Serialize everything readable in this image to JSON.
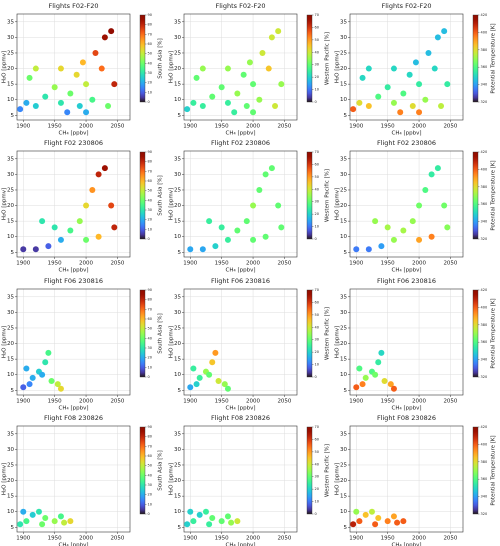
{
  "chart_data": [
    {
      "type": "scatter",
      "title": "Flights F02-F20",
      "x_label": "CH₄ [ppbv]",
      "y_label": "H₂O [ppmv]",
      "colorbar_label": "South Asia [%]",
      "xlim": [
        1890,
        2070
      ],
      "ylim": [
        3.5,
        37.5
      ],
      "xticks": [
        1900,
        1950,
        2000,
        2050
      ],
      "yticks": [
        5,
        10,
        15,
        20,
        25,
        30,
        35
      ],
      "clim": [
        0,
        90
      ],
      "cticks": [
        0,
        10,
        20,
        30,
        40,
        50,
        60,
        70,
        80,
        90
      ],
      "grid": true,
      "x": [
        1895,
        1905,
        1920,
        1935,
        1950,
        1960,
        1975,
        1985,
        1995,
        2000,
        2010,
        2015,
        2025,
        2030,
        2040,
        2045,
        2035,
        1920,
        1910,
        1960,
        1990,
        2000,
        1970
      ],
      "y": [
        7,
        9,
        8,
        11,
        14,
        9,
        12,
        18,
        22,
        15,
        10,
        25,
        20,
        30,
        32,
        15,
        8,
        20,
        17,
        20,
        8,
        6,
        6
      ],
      "c": [
        15,
        20,
        25,
        30,
        45,
        30,
        40,
        55,
        60,
        50,
        35,
        75,
        70,
        85,
        88,
        80,
        40,
        50,
        40,
        55,
        25,
        20,
        15
      ]
    },
    {
      "type": "scatter",
      "title": "Flights F02-F20",
      "x_label": "CH₄ [ppbv]",
      "y_label": "H₂O [ppmv]",
      "colorbar_label": "Western Pacific [%]",
      "xlim": [
        1890,
        2070
      ],
      "ylim": [
        3.5,
        37.5
      ],
      "xticks": [
        1900,
        1950,
        2000,
        2050
      ],
      "yticks": [
        5,
        10,
        15,
        20,
        25,
        30,
        35
      ],
      "clim": [
        0,
        70
      ],
      "cticks": [
        0,
        10,
        20,
        30,
        40,
        50,
        60,
        70
      ],
      "grid": true,
      "x": [
        1895,
        1905,
        1920,
        1935,
        1950,
        1960,
        1975,
        1985,
        1995,
        2000,
        2010,
        2015,
        2025,
        2030,
        2040,
        2045,
        2035,
        1920,
        1910,
        1960,
        1990,
        2000,
        1970
      ],
      "y": [
        7,
        9,
        8,
        11,
        14,
        9,
        12,
        18,
        22,
        15,
        10,
        25,
        20,
        30,
        32,
        15,
        8,
        20,
        17,
        20,
        8,
        6,
        6
      ],
      "c": [
        20,
        25,
        25,
        30,
        30,
        25,
        35,
        30,
        35,
        30,
        35,
        40,
        45,
        40,
        40,
        35,
        40,
        35,
        30,
        35,
        30,
        30,
        25
      ]
    },
    {
      "type": "scatter",
      "title": "Flights F02-F20",
      "x_label": "CH₄ [ppbv]",
      "y_label": "H₂O [ppmv]",
      "colorbar_label": "Potential Temperature [K]",
      "xlim": [
        1890,
        2070
      ],
      "ylim": [
        3.5,
        37.5
      ],
      "xticks": [
        1900,
        1950,
        2000,
        2050
      ],
      "yticks": [
        5,
        10,
        15,
        20,
        25,
        30,
        35
      ],
      "clim": [
        320,
        420
      ],
      "cticks": [
        320,
        340,
        360,
        380,
        400,
        420
      ],
      "grid": true,
      "x": [
        1895,
        1905,
        1920,
        1935,
        1950,
        1960,
        1975,
        1985,
        1995,
        2000,
        2010,
        2015,
        2025,
        2030,
        2040,
        2045,
        2035,
        1920,
        1910,
        1960,
        1990,
        2000,
        1970
      ],
      "y": [
        7,
        9,
        8,
        11,
        14,
        9,
        12,
        18,
        22,
        15,
        10,
        25,
        20,
        30,
        32,
        15,
        8,
        20,
        17,
        20,
        8,
        6,
        6
      ],
      "c": [
        400,
        380,
        385,
        360,
        355,
        370,
        360,
        350,
        345,
        355,
        370,
        345,
        350,
        345,
        345,
        355,
        375,
        350,
        350,
        350,
        380,
        395,
        395
      ]
    },
    {
      "type": "scatter",
      "title": "Flight F02 230806",
      "x_label": "CH₄ [ppbv]",
      "y_label": "H₂O [ppmv]",
      "colorbar_label": "South Asia [%]",
      "xlim": [
        1890,
        2070
      ],
      "ylim": [
        3.5,
        37.5
      ],
      "xticks": [
        1900,
        1950,
        2000,
        2050
      ],
      "yticks": [
        5,
        10,
        15,
        20,
        25,
        30,
        35
      ],
      "clim": [
        0,
        90
      ],
      "cticks": [
        0,
        10,
        20,
        30,
        40,
        50,
        60,
        70,
        80,
        90
      ],
      "grid": true,
      "x": [
        1900,
        1920,
        1940,
        1960,
        1975,
        1990,
        2000,
        2010,
        2020,
        2030,
        2040,
        2045,
        2020,
        2000,
        1950,
        1930
      ],
      "y": [
        6,
        6,
        7,
        9,
        12,
        15,
        20,
        25,
        30,
        32,
        20,
        13,
        10,
        9,
        13,
        15
      ],
      "c": [
        5,
        5,
        10,
        20,
        35,
        45,
        55,
        65,
        80,
        85,
        75,
        80,
        60,
        40,
        30,
        30
      ]
    },
    {
      "type": "scatter",
      "title": "Flight F02 230806",
      "x_label": "CH₄ [ppbv]",
      "y_label": "H₂O [ppmv]",
      "colorbar_label": "Western Pacific [%]",
      "xlim": [
        1890,
        2070
      ],
      "ylim": [
        3.5,
        37.5
      ],
      "xticks": [
        1900,
        1950,
        2000,
        2050
      ],
      "yticks": [
        5,
        10,
        15,
        20,
        25,
        30,
        35
      ],
      "clim": [
        0,
        70
      ],
      "cticks": [
        0,
        10,
        20,
        30,
        40,
        50,
        60,
        70
      ],
      "grid": true,
      "x": [
        1900,
        1920,
        1940,
        1960,
        1975,
        1990,
        2000,
        2010,
        2020,
        2030,
        2040,
        2045,
        2020,
        2000,
        1950,
        1930
      ],
      "y": [
        6,
        6,
        7,
        9,
        12,
        15,
        20,
        25,
        30,
        32,
        20,
        13,
        10,
        9,
        13,
        15
      ],
      "c": [
        15,
        15,
        20,
        25,
        30,
        30,
        35,
        30,
        30,
        30,
        30,
        30,
        30,
        30,
        25,
        25
      ]
    },
    {
      "type": "scatter",
      "title": "Flight F02 230806",
      "x_label": "CH₄ [ppbv]",
      "y_label": "H₂O [ppmv]",
      "colorbar_label": "Potential Temperature [K]",
      "xlim": [
        1890,
        2070
      ],
      "ylim": [
        3.5,
        37.5
      ],
      "xticks": [
        1900,
        1950,
        2000,
        2050
      ],
      "yticks": [
        5,
        10,
        15,
        20,
        25,
        30,
        35
      ],
      "clim": [
        320,
        420
      ],
      "cticks": [
        320,
        340,
        360,
        380,
        400,
        420
      ],
      "grid": true,
      "x": [
        1900,
        1920,
        1940,
        1960,
        1975,
        1990,
        2000,
        2010,
        2020,
        2030,
        2040,
        2045,
        2020,
        2000,
        1950,
        1930
      ],
      "y": [
        6,
        6,
        7,
        9,
        12,
        15,
        20,
        25,
        30,
        32,
        20,
        13,
        10,
        9,
        13,
        15
      ],
      "c": [
        335,
        335,
        340,
        370,
        372,
        370,
        365,
        360,
        355,
        355,
        365,
        368,
        395,
        390,
        372,
        370
      ]
    },
    {
      "type": "scatter",
      "title": "Flight F06 230816",
      "x_label": "CH₄ [ppbv]",
      "y_label": "H₂O [ppmv]",
      "colorbar_label": "South Asia [%]",
      "xlim": [
        1890,
        2070
      ],
      "ylim": [
        3.5,
        37.5
      ],
      "xticks": [
        1900,
        1950,
        2000,
        2050
      ],
      "yticks": [
        5,
        10,
        15,
        20,
        25,
        30,
        35
      ],
      "clim": [
        0,
        90
      ],
      "cticks": [
        0,
        10,
        20,
        30,
        40,
        50,
        60,
        70,
        80,
        90
      ],
      "grid": true,
      "x": [
        1900,
        1910,
        1915,
        1925,
        1935,
        1940,
        1930,
        1945,
        1955,
        1960,
        1905
      ],
      "y": [
        6,
        7,
        9,
        11,
        14,
        17,
        10,
        8,
        7,
        5.5,
        12
      ],
      "c": [
        10,
        15,
        20,
        25,
        30,
        35,
        20,
        40,
        50,
        55,
        20
      ]
    },
    {
      "type": "scatter",
      "title": "Flight F06 230816",
      "x_label": "CH₄ [ppbv]",
      "y_label": "H₂O [ppmv]",
      "colorbar_label": "Western Pacific [%]",
      "xlim": [
        1890,
        2070
      ],
      "ylim": [
        3.5,
        37.5
      ],
      "xticks": [
        1900,
        1950,
        2000,
        2050
      ],
      "yticks": [
        5,
        10,
        15,
        20,
        25,
        30,
        35
      ],
      "clim": [
        0,
        70
      ],
      "cticks": [
        0,
        10,
        20,
        30,
        40,
        50,
        60,
        70
      ],
      "grid": true,
      "x": [
        1900,
        1910,
        1915,
        1925,
        1935,
        1940,
        1930,
        1945,
        1955,
        1960,
        1905
      ],
      "y": [
        6,
        7,
        9,
        11,
        14,
        17,
        10,
        8,
        7,
        5.5,
        12
      ],
      "c": [
        15,
        20,
        25,
        35,
        45,
        50,
        30,
        40,
        35,
        30,
        25
      ]
    },
    {
      "type": "scatter",
      "title": "Flight F06 230816",
      "x_label": "CH₄ [ppbv]",
      "y_label": "H₂O [ppmv]",
      "colorbar_label": "Potential Temperature [K]",
      "xlim": [
        1890,
        2070
      ],
      "ylim": [
        3.5,
        37.5
      ],
      "xticks": [
        1900,
        1950,
        2000,
        2050
      ],
      "yticks": [
        5,
        10,
        15,
        20,
        25,
        30,
        35
      ],
      "clim": [
        320,
        420
      ],
      "cticks": [
        320,
        340,
        360,
        380,
        400,
        420
      ],
      "grid": true,
      "x": [
        1900,
        1910,
        1915,
        1925,
        1935,
        1940,
        1930,
        1945,
        1955,
        1960,
        1905
      ],
      "y": [
        6,
        7,
        9,
        11,
        14,
        17,
        10,
        8,
        7,
        5.5,
        12
      ],
      "c": [
        400,
        395,
        370,
        360,
        355,
        350,
        365,
        380,
        390,
        400,
        360
      ]
    },
    {
      "type": "scatter",
      "title": "Flight F08 230826",
      "x_label": "CH₄ [ppbv]",
      "y_label": "H₂O [ppmv]",
      "colorbar_label": "South Asia [%]",
      "xlim": [
        1890,
        2070
      ],
      "ylim": [
        3.5,
        37.5
      ],
      "xticks": [
        1900,
        1950,
        2000,
        2050
      ],
      "yticks": [
        5,
        10,
        15,
        20,
        25,
        30,
        35
      ],
      "clim": [
        0,
        90
      ],
      "cticks": [
        0,
        10,
        20,
        30,
        40,
        50,
        60,
        70,
        80,
        90
      ],
      "grid": true,
      "x": [
        1895,
        1905,
        1915,
        1925,
        1935,
        1950,
        1965,
        1975,
        1900,
        1930,
        1960
      ],
      "y": [
        6,
        7,
        9,
        10,
        8,
        7,
        6.5,
        7,
        10,
        6,
        8.5
      ],
      "c": [
        30,
        35,
        25,
        30,
        40,
        45,
        50,
        55,
        20,
        40,
        35
      ]
    },
    {
      "type": "scatter",
      "title": "Flight F08 230826",
      "x_label": "CH₄ [ppbv]",
      "y_label": "H₂O [ppmv]",
      "colorbar_label": "Western Pacific [%]",
      "xlim": [
        1890,
        2070
      ],
      "ylim": [
        3.5,
        37.5
      ],
      "xticks": [
        1900,
        1950,
        2000,
        2050
      ],
      "yticks": [
        5,
        10,
        15,
        20,
        25,
        30,
        35
      ],
      "clim": [
        0,
        70
      ],
      "cticks": [
        0,
        10,
        20,
        30,
        40,
        50,
        60,
        70
      ],
      "grid": true,
      "x": [
        1895,
        1905,
        1915,
        1925,
        1935,
        1950,
        1965,
        1975,
        1900,
        1930,
        1960
      ],
      "y": [
        6,
        7,
        9,
        10,
        8,
        7,
        6.5,
        7,
        10,
        6,
        8.5
      ],
      "c": [
        20,
        25,
        20,
        25,
        30,
        30,
        35,
        40,
        20,
        25,
        30
      ]
    },
    {
      "type": "scatter",
      "title": "Flight F08 230826",
      "x_label": "CH₄ [ppbv]",
      "y_label": "H₂O [ppmv]",
      "colorbar_label": "Potential Temperature [K]",
      "xlim": [
        1890,
        2070
      ],
      "ylim": [
        3.5,
        37.5
      ],
      "xticks": [
        1900,
        1950,
        2000,
        2050
      ],
      "yticks": [
        5,
        10,
        15,
        20,
        25,
        30,
        35
      ],
      "clim": [
        320,
        420
      ],
      "cticks": [
        320,
        340,
        360,
        380,
        400,
        420
      ],
      "grid": true,
      "x": [
        1895,
        1905,
        1915,
        1925,
        1935,
        1950,
        1965,
        1975,
        1900,
        1930,
        1960
      ],
      "y": [
        6,
        7,
        9,
        10,
        8,
        7,
        6.5,
        7,
        10,
        6,
        8.5
      ],
      "c": [
        410,
        400,
        385,
        375,
        385,
        395,
        400,
        400,
        370,
        400,
        390
      ]
    }
  ]
}
